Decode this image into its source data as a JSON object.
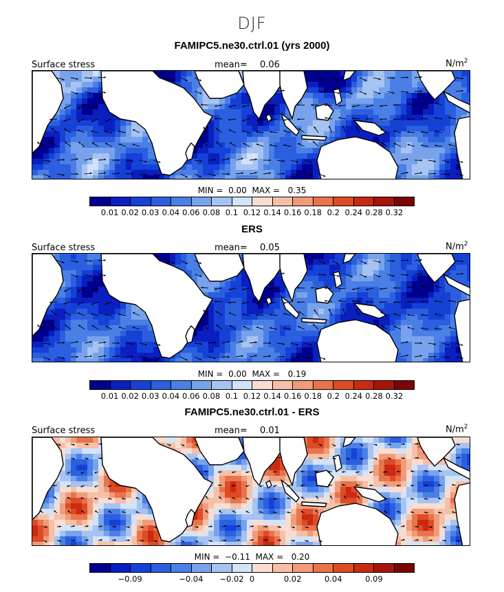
{
  "figure": {
    "title": "DJF",
    "colorbar_a": {
      "colors": [
        "#00008f",
        "#0a1fc0",
        "#1541d6",
        "#2b5fe0",
        "#4a7fe6",
        "#78a3ec",
        "#a6c3f2",
        "#d3e3f8",
        "#f9ddd0",
        "#f6c0a8",
        "#f09c7a",
        "#e8744c",
        "#de4b25",
        "#c92a11",
        "#a8150a",
        "#7d0404"
      ],
      "ticks": [
        "0.01",
        "0.02",
        "0.03",
        "0.04",
        "0.06",
        "0.08",
        "0.1",
        "0.12",
        "0.14",
        "0.16",
        "0.18",
        "0.2",
        "0.24",
        "0.28",
        "0.32"
      ]
    },
    "colorbar_b": {
      "colors": [
        "#00008f",
        "#0a1fc0",
        "#1541d6",
        "#2b5fe0",
        "#4a7fe6",
        "#78a3ec",
        "#a6c3f2",
        "#d3e3f8",
        "#f9ddd0",
        "#f6c0a8",
        "#f09c7a",
        "#e8744c",
        "#de4b25",
        "#c92a11",
        "#a8150a",
        "#7d0404"
      ],
      "ticks": [
        "−0.09",
        "−0.04",
        "−0.02",
        "0",
        "0.02",
        "0.04",
        "0.09"
      ]
    },
    "panels": [
      {
        "title": "FAMIPC5.ne30.ctrl.01 (yrs 2000)",
        "left_label": "Surface stress",
        "mean_label": "mean=",
        "mean_value": "0.06",
        "unit": "N/m",
        "unit_sup": "2",
        "min_label": "MIN =",
        "min_value": "0.00",
        "max_label": "MAX =",
        "max_value": "0.35",
        "palette": "abs_high"
      },
      {
        "title": "ERS",
        "left_label": "Surface stress",
        "mean_label": "mean=",
        "mean_value": "0.05",
        "unit": "N/m",
        "unit_sup": "2",
        "min_label": "MIN =",
        "min_value": "0.00",
        "max_label": "MAX =",
        "max_value": "0.19",
        "palette": "abs_low"
      },
      {
        "title": "FAMIPC5.ne30.ctrl.01 - ERS",
        "left_label": "Surface stress",
        "mean_label": "mean=",
        "mean_value": "0.01",
        "unit": "N/m",
        "unit_sup": "2",
        "min_label": "MIN =",
        "min_value": "−0.11",
        "max_label": "MAX =",
        "max_value": "0.20",
        "palette": "diff"
      }
    ]
  }
}
